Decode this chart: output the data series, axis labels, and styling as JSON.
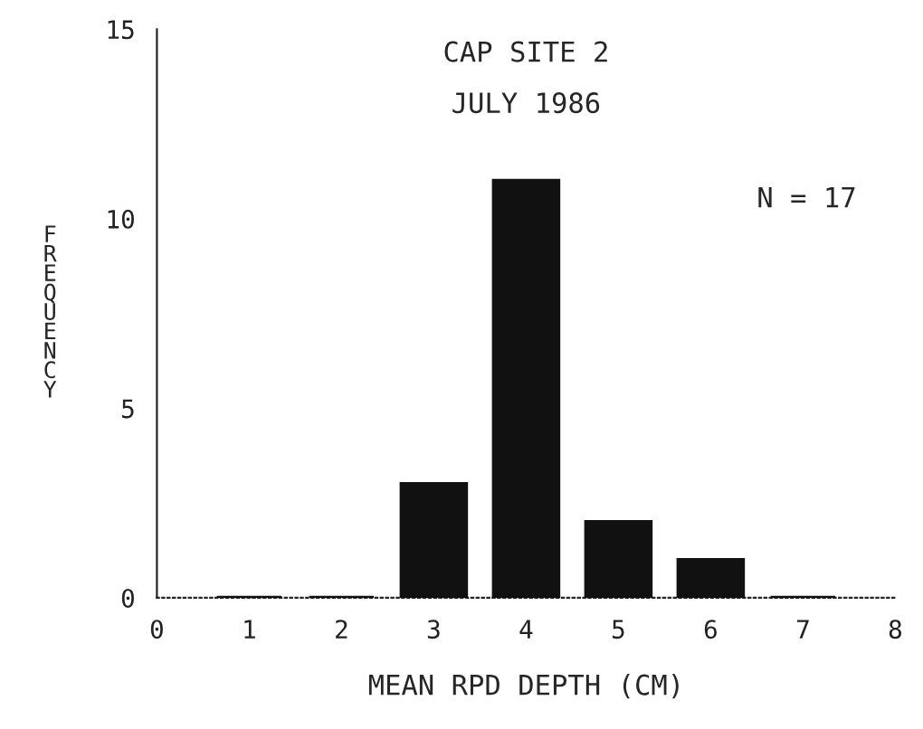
{
  "chart_data": {
    "type": "bar",
    "title": "CAP SITE 2",
    "subtitle": "JULY 1986",
    "xlabel": "MEAN RPD DEPTH (CM)",
    "ylabel": "FREQUENCY",
    "x": [
      1,
      2,
      3,
      4,
      5,
      6,
      7
    ],
    "values": [
      0,
      0,
      3,
      11,
      2,
      1,
      0
    ],
    "color": "#111111",
    "xlim": [
      0,
      8
    ],
    "xticks": [
      0,
      1,
      2,
      3,
      4,
      5,
      6,
      7,
      8
    ],
    "ylim": [
      0,
      15
    ],
    "yticks": [
      0,
      5,
      10,
      15
    ],
    "annotations": [
      "N = 17"
    ],
    "grid": false
  }
}
